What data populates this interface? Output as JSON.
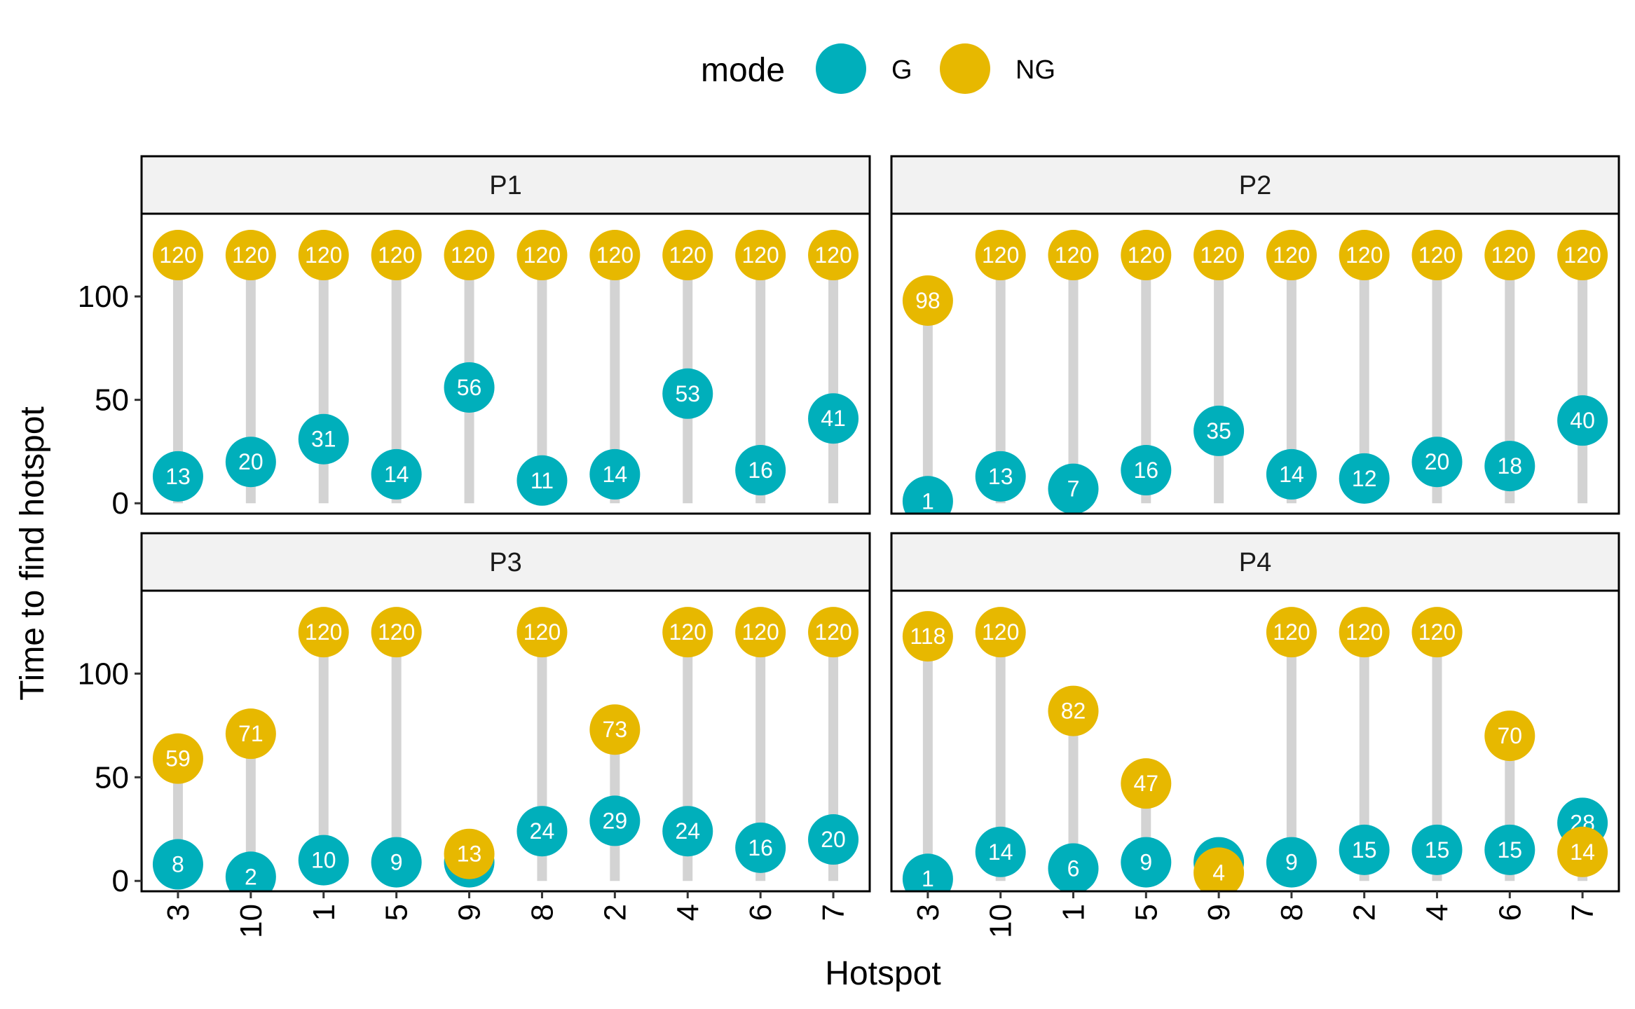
{
  "chart_data": {
    "type": "lollipop",
    "xlabel": "Hotspot",
    "ylabel": "Time to find hotspot",
    "ylim": [
      -5,
      140
    ],
    "yticks": [
      0,
      50,
      100
    ],
    "categories": [
      "3",
      "10",
      "1",
      "5",
      "9",
      "8",
      "2",
      "4",
      "6",
      "7"
    ],
    "legend": {
      "title": "mode",
      "position": "top",
      "entries": [
        {
          "name": "G",
          "color": "#00AFBB"
        },
        {
          "name": "NG",
          "color": "#E7B800"
        }
      ]
    },
    "segment_color": "#D3D3D3",
    "strip_fill": "#F2F2F2",
    "panels": [
      {
        "label": "P1",
        "G": [
          13,
          20,
          31,
          14,
          56,
          11,
          14,
          53,
          16,
          41
        ],
        "NG": [
          120,
          120,
          120,
          120,
          120,
          120,
          120,
          120,
          120,
          120
        ]
      },
      {
        "label": "P2",
        "G": [
          1,
          13,
          7,
          16,
          35,
          14,
          12,
          20,
          18,
          40
        ],
        "NG": [
          98,
          120,
          120,
          120,
          120,
          120,
          120,
          120,
          120,
          120
        ]
      },
      {
        "label": "P3",
        "G": [
          8,
          2,
          10,
          9,
          9,
          24,
          29,
          24,
          16,
          20
        ],
        "NG": [
          59,
          71,
          120,
          120,
          13,
          120,
          73,
          120,
          120,
          120
        ]
      },
      {
        "label": "P4",
        "G": [
          1,
          14,
          6,
          9,
          9,
          9,
          15,
          15,
          15,
          28
        ],
        "NG": [
          118,
          120,
          82,
          47,
          4,
          120,
          120,
          120,
          70,
          14
        ]
      }
    ]
  }
}
